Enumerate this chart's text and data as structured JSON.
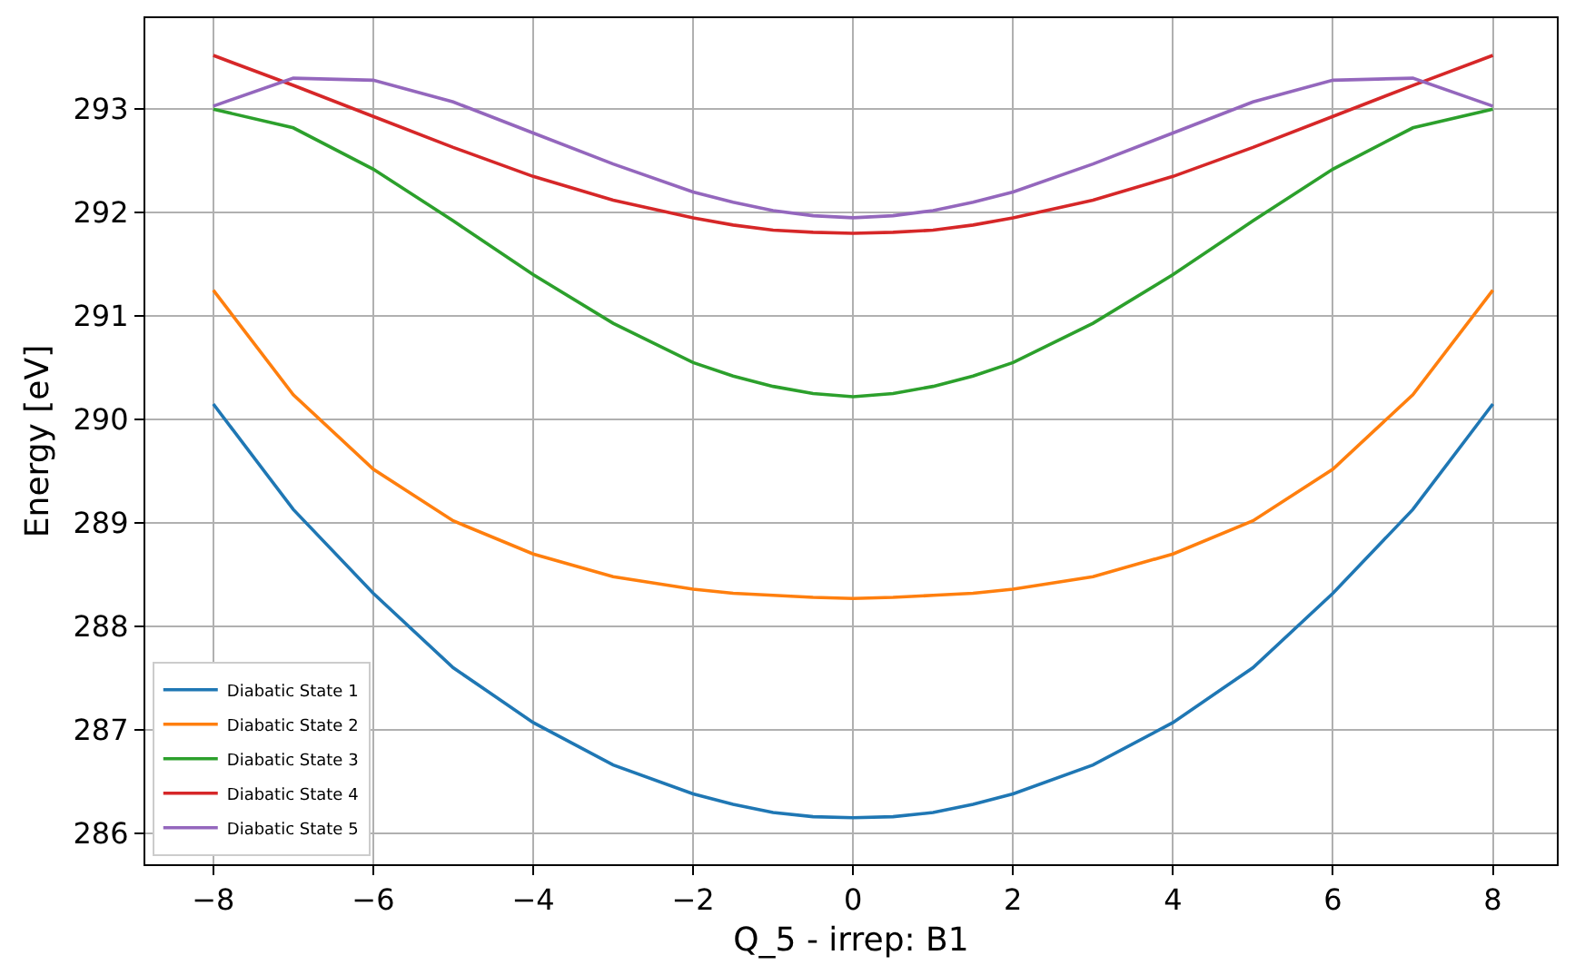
{
  "chart_data": {
    "type": "line",
    "xlabel": "Q_5 - irrep: B1",
    "ylabel": "Energy [eV]",
    "x": [
      -8,
      -7,
      -6,
      -5,
      -4,
      -3,
      -2,
      -1.5,
      -1,
      -0.5,
      0,
      0.5,
      1,
      1.5,
      2,
      3,
      4,
      5,
      6,
      7,
      8
    ],
    "xlim": [
      -8.85,
      8.8
    ],
    "ylim": [
      285.7,
      293.88
    ],
    "xticks": [
      {
        "value": -8,
        "label": "−8"
      },
      {
        "value": -6,
        "label": "−6"
      },
      {
        "value": -4,
        "label": "−4"
      },
      {
        "value": -2,
        "label": "−2"
      },
      0,
      2,
      4,
      6,
      8
    ],
    "yticks": [
      286,
      287,
      288,
      289,
      290,
      291,
      292,
      293
    ],
    "grid": true,
    "legend": "bottom left",
    "marker": "none",
    "line_style": "solid",
    "series": [
      {
        "name": "Diabatic State 1",
        "color": "#1f77b4",
        "values": [
          290.15,
          289.13,
          288.32,
          287.6,
          287.07,
          286.66,
          286.38,
          286.28,
          286.2,
          286.16,
          286.15,
          286.16,
          286.2,
          286.28,
          286.38,
          286.66,
          287.07,
          287.6,
          288.32,
          289.13,
          290.15
        ]
      },
      {
        "name": "Diabatic State 2",
        "color": "#ff7f0e",
        "values": [
          291.25,
          290.24,
          289.52,
          289.02,
          288.7,
          288.48,
          288.36,
          288.32,
          288.3,
          288.28,
          288.27,
          288.28,
          288.3,
          288.32,
          288.36,
          288.48,
          288.7,
          289.02,
          289.52,
          290.24,
          291.25
        ]
      },
      {
        "name": "Diabatic State 3",
        "color": "#2ca02c",
        "values": [
          293.0,
          292.82,
          292.42,
          291.92,
          291.4,
          290.93,
          290.55,
          290.42,
          290.32,
          290.25,
          290.22,
          290.25,
          290.32,
          290.42,
          290.55,
          290.93,
          291.4,
          291.92,
          292.42,
          292.82,
          293.0
        ]
      },
      {
        "name": "Diabatic State 4",
        "color": "#d62728",
        "values": [
          293.52,
          293.23,
          292.93,
          292.63,
          292.35,
          292.12,
          291.95,
          291.88,
          291.83,
          291.81,
          291.8,
          291.81,
          291.83,
          291.88,
          291.95,
          292.12,
          292.35,
          292.63,
          292.93,
          293.23,
          293.52
        ]
      },
      {
        "name": "Diabatic State 5",
        "color": "#9467bd",
        "values": [
          293.03,
          293.3,
          293.28,
          293.07,
          292.77,
          292.47,
          292.2,
          292.1,
          292.02,
          291.97,
          291.95,
          291.97,
          292.02,
          292.1,
          292.2,
          292.47,
          292.77,
          293.07,
          293.28,
          293.3,
          293.03
        ]
      }
    ]
  }
}
